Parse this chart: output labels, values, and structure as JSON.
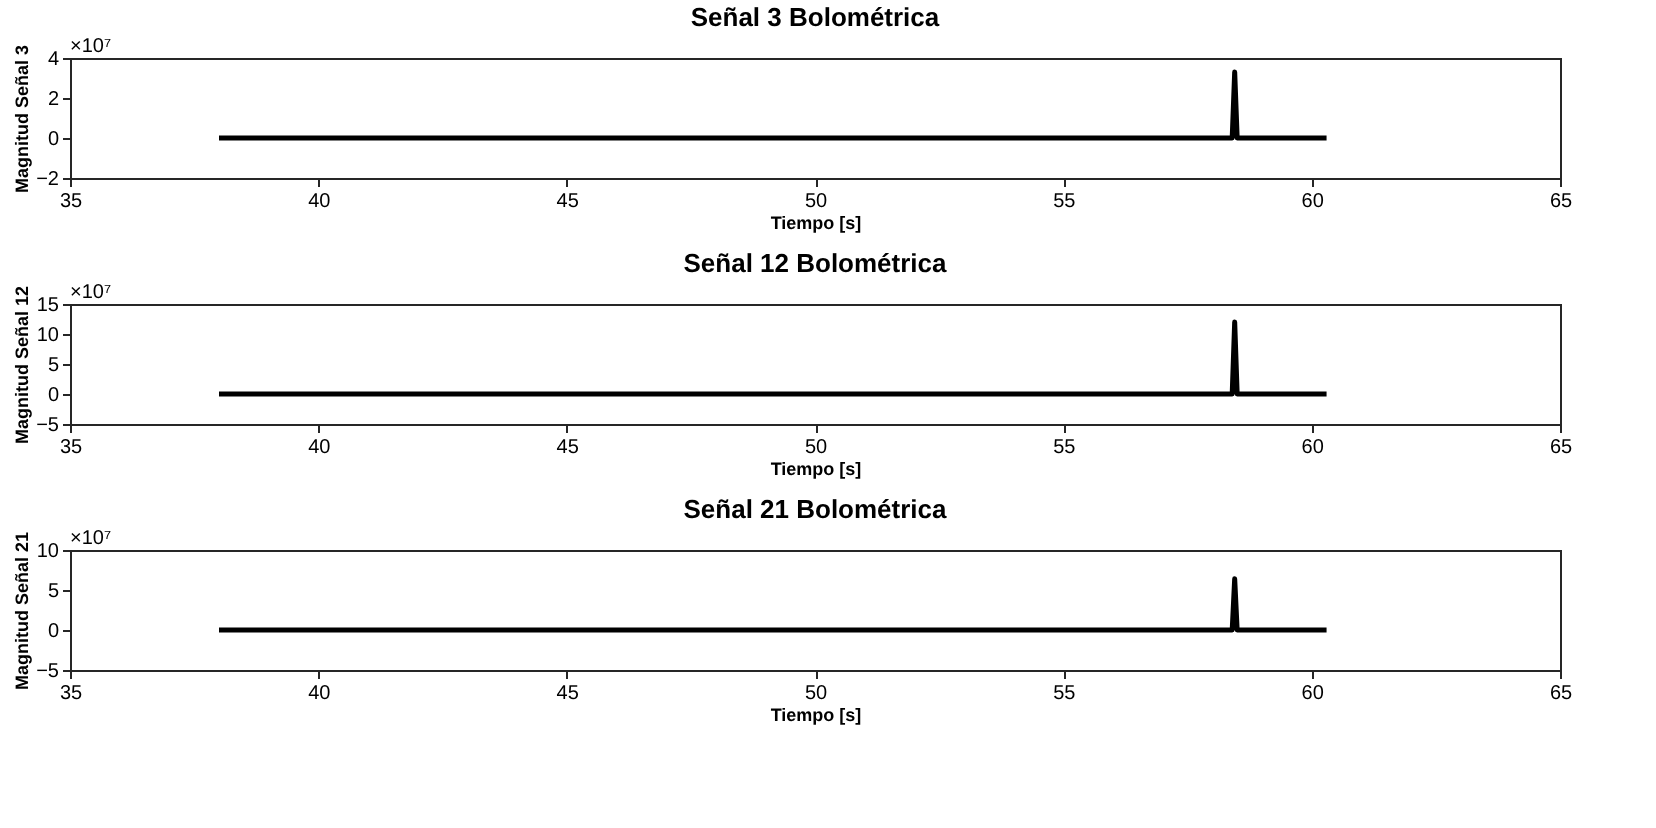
{
  "chart_data": [
    {
      "type": "line",
      "title": "Señal 3 Bolométrica",
      "xlabel": "Tiempo [s]",
      "ylabel": "Magnitud Señal 3",
      "annotations": [
        "×10⁷"
      ],
      "xlim": [
        35,
        65
      ],
      "xticks": [
        35,
        40,
        45,
        50,
        55,
        60,
        65
      ],
      "ylim": [
        -2,
        4
      ],
      "yticks": [
        -2,
        0,
        2,
        4
      ],
      "grid": false,
      "series": [
        {
          "color": "#000000",
          "x": [
            38,
            58.4,
            58.45,
            58.5,
            60.3
          ],
          "values": [
            0,
            0,
            3.3,
            0,
            0
          ]
        }
      ]
    },
    {
      "type": "line",
      "title": "Señal 12 Bolométrica",
      "xlabel": "Tiempo [s]",
      "ylabel": "Magnitud Señal 12",
      "annotations": [
        "×10⁷"
      ],
      "xlim": [
        35,
        65
      ],
      "xticks": [
        35,
        40,
        45,
        50,
        55,
        60,
        65
      ],
      "ylim": [
        -5,
        15
      ],
      "yticks": [
        -5,
        0,
        5,
        10,
        15
      ],
      "grid": false,
      "series": [
        {
          "color": "#000000",
          "x": [
            38,
            58.4,
            58.45,
            58.5,
            60.3
          ],
          "values": [
            0,
            0,
            12,
            0,
            0
          ]
        }
      ]
    },
    {
      "type": "line",
      "title": "Señal 21 Bolométrica",
      "xlabel": "Tiempo [s]",
      "ylabel": "Magnitud Señal 21",
      "annotations": [
        "×10⁷"
      ],
      "xlim": [
        35,
        65
      ],
      "xticks": [
        35,
        40,
        45,
        50,
        55,
        60,
        65
      ],
      "ylim": [
        -5,
        10
      ],
      "yticks": [
        -5,
        0,
        5,
        10
      ],
      "grid": false,
      "series": [
        {
          "color": "#000000",
          "x": [
            38,
            58.4,
            58.45,
            58.5,
            60.3
          ],
          "values": [
            0,
            0,
            6.4,
            0,
            0
          ]
        }
      ]
    }
  ]
}
